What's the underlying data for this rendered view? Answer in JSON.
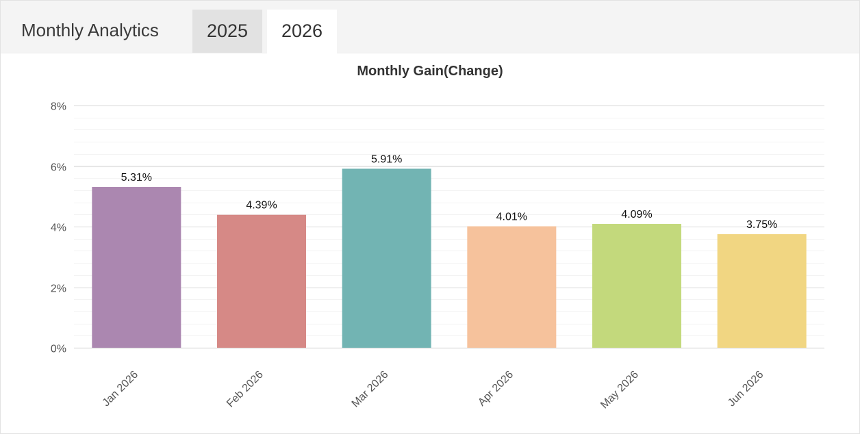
{
  "header": {
    "title": "Monthly Analytics",
    "tabs": [
      {
        "label": "2025",
        "active": false
      },
      {
        "label": "2026",
        "active": true
      }
    ]
  },
  "chart_data": {
    "type": "bar",
    "title": "Monthly Gain(Change)",
    "categories": [
      "Jan 2026",
      "Feb 2026",
      "Mar 2026",
      "Apr 2026",
      "May 2026",
      "Jun 2026"
    ],
    "values": [
      5.31,
      4.39,
      5.91,
      4.01,
      4.09,
      3.75
    ],
    "value_labels": [
      "5.31%",
      "4.39%",
      "5.91%",
      "4.01%",
      "4.09%",
      "3.75%"
    ],
    "colors": [
      "#ab87b0",
      "#d68986",
      "#72b4b3",
      "#f6c29c",
      "#c3d97c",
      "#f1d682"
    ],
    "ylim": [
      0,
      8
    ],
    "yticks": [
      0,
      2,
      4,
      6,
      8
    ],
    "ytick_labels": [
      "0%",
      "2%",
      "4%",
      "6%",
      "8%"
    ],
    "xlabel": "",
    "ylabel": "",
    "grid": true,
    "legend": false
  }
}
